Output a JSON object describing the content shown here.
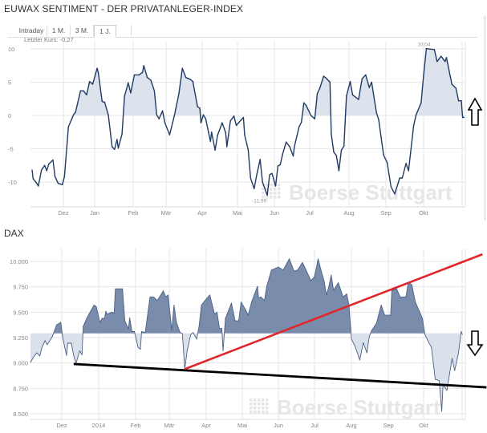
{
  "header": {
    "title": "EUWAX SENTIMENT - DER PRIVATANLEGER-INDEX"
  },
  "tabs": [
    {
      "label": "Intraday",
      "selected": false
    },
    {
      "label": "1 M.",
      "selected": false
    },
    {
      "label": "3 M.",
      "selected": false
    },
    {
      "label": "1 J.",
      "selected": true
    },
    {
      "label": "",
      "selected": false
    }
  ],
  "last_price": "Letzter Kurs: -0,27",
  "watermark": "Boerse Stuttgart",
  "colors": {
    "sentiment_line": "#1f3a63",
    "sentiment_fill": "#dde3ec",
    "dax_line": "#4a6088",
    "dax_fill_above": "#7a8cab",
    "dax_fill_below": "#dbe1ea",
    "trend_red": "#e0262b",
    "trend_black": "#000000"
  },
  "chart_data": [
    {
      "type": "area",
      "title": "EUWAX SENTIMENT - DER PRIVATANLEGER-INDEX",
      "x_tick_labels": [
        "Dez",
        "Jan",
        "Feb",
        "Mär",
        "Apr",
        "Mai",
        "Jun",
        "Jul",
        "Aug",
        "Sep",
        "Okt"
      ],
      "y_ticks": [
        10,
        5,
        0,
        -5,
        -10
      ],
      "y_tick_labels": [
        "10",
        "5",
        "0",
        "-5",
        "-10"
      ],
      "ylim": [
        -13,
        11
      ],
      "baseline": 0,
      "grid": true,
      "annotations": {
        "max_label": "10,04",
        "min_label": "-11,99",
        "arrow": "up"
      },
      "points": [
        [
          "2013-11-01",
          -8.2
        ],
        [
          "2013-11-02",
          -9.5
        ],
        [
          "2013-11-05",
          -10.1
        ],
        [
          "2013-11-07",
          -10.6
        ],
        [
          "2013-11-10",
          -8.2
        ],
        [
          "2013-11-13",
          -7.5
        ],
        [
          "2013-11-15",
          -8.3
        ],
        [
          "2013-11-17",
          -7.3
        ],
        [
          "2013-11-21",
          -6.7
        ],
        [
          "2013-11-23",
          -9.2
        ],
        [
          "2013-11-26",
          -10.2
        ],
        [
          "2013-11-30",
          -10.4
        ],
        [
          "2013-12-02",
          -9.2
        ],
        [
          "2013-12-06",
          -1.7
        ],
        [
          "2013-12-11",
          0.1
        ],
        [
          "2013-12-13",
          0.5
        ],
        [
          "2013-12-18",
          3.7
        ],
        [
          "2013-12-21",
          3.7
        ],
        [
          "2013-12-24",
          3.1
        ],
        [
          "2013-12-27",
          5.1
        ],
        [
          "2013-12-30",
          4.7
        ],
        [
          "2014-01-03",
          7.1
        ],
        [
          "2014-01-04",
          6.4
        ],
        [
          "2014-01-07",
          2.1
        ],
        [
          "2014-01-09",
          2.0
        ],
        [
          "2014-01-12",
          0.1
        ],
        [
          "2014-01-15",
          -4.7
        ],
        [
          "2014-01-17",
          -5.1
        ],
        [
          "2014-01-19",
          -3.6
        ],
        [
          "2014-01-20",
          -4.9
        ],
        [
          "2014-01-23",
          -2.8
        ],
        [
          "2014-01-25",
          2.9
        ],
        [
          "2014-01-28",
          4.9
        ],
        [
          "2014-01-30",
          3.4
        ],
        [
          "2014-02-02",
          6.1
        ],
        [
          "2014-02-06",
          6.1
        ],
        [
          "2014-02-09",
          6.5
        ],
        [
          "2014-02-10",
          7.5
        ],
        [
          "2014-02-13",
          5.7
        ],
        [
          "2014-02-16",
          5.3
        ],
        [
          "2014-02-19",
          3.7
        ],
        [
          "2014-02-21",
          0.1
        ],
        [
          "2014-02-23",
          -0.5
        ],
        [
          "2014-02-26",
          0.7
        ],
        [
          "2014-02-28",
          -1.1
        ],
        [
          "2014-03-04",
          -2.9
        ],
        [
          "2014-03-08",
          -0.1
        ],
        [
          "2014-03-12",
          3.3
        ],
        [
          "2014-03-15",
          7.1
        ],
        [
          "2014-03-18",
          5.7
        ],
        [
          "2014-03-22",
          5.4
        ],
        [
          "2014-03-24",
          5.1
        ],
        [
          "2014-03-28",
          1.3
        ],
        [
          "2014-03-30",
          1.1
        ],
        [
          "2014-03-31",
          -1.1
        ],
        [
          "2014-04-02",
          0.1
        ],
        [
          "2014-04-04",
          -0.5
        ],
        [
          "2014-04-08",
          -3.9
        ],
        [
          "2014-04-09",
          -2.5
        ],
        [
          "2014-04-12",
          -5.2
        ],
        [
          "2014-04-14",
          -3.0
        ],
        [
          "2014-04-18",
          -1.1
        ],
        [
          "2014-04-21",
          -2.6
        ],
        [
          "2014-04-22",
          -4.7
        ],
        [
          "2014-04-25",
          -0.8
        ],
        [
          "2014-04-28",
          -0.1
        ],
        [
          "2014-04-30",
          -1.5
        ],
        [
          "2014-05-06",
          -0.3
        ],
        [
          "2014-05-07",
          -2.9
        ],
        [
          "2014-05-10",
          -5.2
        ],
        [
          "2014-05-12",
          -9.4
        ],
        [
          "2014-05-15",
          -11.0
        ],
        [
          "2014-05-17",
          -9.1
        ],
        [
          "2014-05-20",
          -6.6
        ],
        [
          "2014-05-22",
          -10.0
        ],
        [
          "2014-05-26",
          -11.99
        ],
        [
          "2014-05-28",
          -8.9
        ],
        [
          "2014-05-30",
          -8.7
        ],
        [
          "2014-06-02",
          -10.6
        ],
        [
          "2014-06-04",
          -7.6
        ],
        [
          "2014-06-06",
          -7.4
        ],
        [
          "2014-06-08",
          -5.8
        ],
        [
          "2014-06-11",
          -4.0
        ],
        [
          "2014-06-14",
          -4.7
        ],
        [
          "2014-06-17",
          -6.1
        ],
        [
          "2014-06-18",
          -4.7
        ],
        [
          "2014-06-22",
          -1.7
        ],
        [
          "2014-06-24",
          -1.0
        ],
        [
          "2014-06-26",
          1.9
        ],
        [
          "2014-06-28",
          1.5
        ],
        [
          "2014-07-02",
          0.0
        ],
        [
          "2014-07-05",
          -0.5
        ],
        [
          "2014-07-07",
          3.3
        ],
        [
          "2014-07-09",
          4.1
        ],
        [
          "2014-07-12",
          5.9
        ],
        [
          "2014-07-14",
          5.6
        ],
        [
          "2014-07-17",
          5.0
        ],
        [
          "2014-07-18",
          -2.8
        ],
        [
          "2014-07-20",
          -5.5
        ],
        [
          "2014-07-22",
          -6.0
        ],
        [
          "2014-07-24",
          -8.3
        ],
        [
          "2014-07-26",
          -5.2
        ],
        [
          "2014-07-28",
          -4.6
        ],
        [
          "2014-07-30",
          2.9
        ],
        [
          "2014-08-02",
          5.1
        ],
        [
          "2014-08-04",
          3.1
        ],
        [
          "2014-08-09",
          2.4
        ],
        [
          "2014-08-12",
          5.5
        ],
        [
          "2014-08-15",
          6.1
        ],
        [
          "2014-08-18",
          4.2
        ],
        [
          "2014-08-20",
          5.0
        ],
        [
          "2014-08-24",
          0.5
        ],
        [
          "2014-08-26",
          -0.7
        ],
        [
          "2014-08-30",
          -5.9
        ],
        [
          "2014-09-02",
          -7.1
        ],
        [
          "2014-09-05",
          -10.7
        ],
        [
          "2014-09-08",
          -11.8
        ],
        [
          "2014-09-12",
          -9.4
        ],
        [
          "2014-09-14",
          -9.4
        ],
        [
          "2014-09-17",
          -7.2
        ],
        [
          "2014-09-19",
          -8.3
        ],
        [
          "2014-09-23",
          -1.6
        ],
        [
          "2014-09-25",
          0.1
        ],
        [
          "2014-09-29",
          1.9
        ],
        [
          "2014-10-01",
          6.1
        ],
        [
          "2014-10-03",
          10.04
        ],
        [
          "2014-10-09",
          9.9
        ],
        [
          "2014-10-11",
          8.1
        ],
        [
          "2014-10-14",
          8.9
        ],
        [
          "2014-10-17",
          8.1
        ],
        [
          "2014-10-18",
          8.7
        ],
        [
          "2014-10-22",
          4.7
        ],
        [
          "2014-10-25",
          4.1
        ],
        [
          "2014-10-27",
          2.2
        ],
        [
          "2014-10-29",
          2.2
        ],
        [
          "2014-10-30",
          -0.3
        ],
        [
          "2014-10-31",
          -0.27
        ]
      ]
    },
    {
      "type": "area",
      "title": "DAX",
      "x_tick_labels": [
        "Dez",
        "2014",
        "Feb",
        "Mär",
        "Apr",
        "Mai",
        "Jun",
        "Jul",
        "Aug",
        "Sep",
        "Okt"
      ],
      "y_ticks": [
        10000,
        9750,
        9500,
        9250,
        9000,
        8750,
        8500
      ],
      "y_tick_labels": [
        "10.000",
        "9.750",
        "9.500",
        "9.250",
        "9.000",
        "8.750",
        "8.500"
      ],
      "ylim": [
        8450,
        10150
      ],
      "baseline": 9290,
      "grid": true,
      "annotations": {
        "arrow": "down"
      },
      "trendlines": [
        {
          "color": "black",
          "from": [
            "2013-12-11",
            8990
          ],
          "to": [
            "2014-11-18",
            8760
          ]
        },
        {
          "color": "red",
          "from": [
            "2014-03-14",
            8940
          ],
          "to": [
            "2014-11-15",
            10070
          ]
        }
      ],
      "points": [
        [
          "2013-11-01",
          9005
        ],
        [
          "2013-11-04",
          9060
        ],
        [
          "2013-11-07",
          9100
        ],
        [
          "2013-11-10",
          9070
        ],
        [
          "2013-11-12",
          9155
        ],
        [
          "2013-11-15",
          9220
        ],
        [
          "2013-11-17",
          9180
        ],
        [
          "2013-11-22",
          9260
        ],
        [
          "2013-11-26",
          9375
        ],
        [
          "2013-11-30",
          9400
        ],
        [
          "2013-12-02",
          9235
        ],
        [
          "2013-12-05",
          9075
        ],
        [
          "2013-12-06",
          9195
        ],
        [
          "2013-12-09",
          9195
        ],
        [
          "2013-12-11",
          9075
        ],
        [
          "2013-12-13",
          8995
        ],
        [
          "2013-12-16",
          9120
        ],
        [
          "2013-12-18",
          9080
        ],
        [
          "2013-12-19",
          9360
        ],
        [
          "2013-12-22",
          9440
        ],
        [
          "2013-12-28",
          9570
        ],
        [
          "2013-12-30",
          9555
        ],
        [
          "2014-01-02",
          9400
        ],
        [
          "2014-01-04",
          9440
        ],
        [
          "2014-01-06",
          9440
        ],
        [
          "2014-01-07",
          9510
        ],
        [
          "2014-01-08",
          9480
        ],
        [
          "2014-01-12",
          9500
        ],
        [
          "2014-01-14",
          9490
        ],
        [
          "2014-01-15",
          9730
        ],
        [
          "2014-01-17",
          9730
        ],
        [
          "2014-01-21",
          9730
        ],
        [
          "2014-01-23",
          9415
        ],
        [
          "2014-01-26",
          9335
        ],
        [
          "2014-01-27",
          9445
        ],
        [
          "2014-01-29",
          9310
        ],
        [
          "2014-01-31",
          9310
        ],
        [
          "2014-02-03",
          9155
        ],
        [
          "2014-02-05",
          9135
        ],
        [
          "2014-02-06",
          9310
        ],
        [
          "2014-02-09",
          9300
        ],
        [
          "2014-02-13",
          9650
        ],
        [
          "2014-02-16",
          9650
        ],
        [
          "2014-02-19",
          9615
        ],
        [
          "2014-02-24",
          9710
        ],
        [
          "2014-02-26",
          9650
        ],
        [
          "2014-02-28",
          9670
        ],
        [
          "2014-03-03",
          9320
        ],
        [
          "2014-03-05",
          9570
        ],
        [
          "2014-03-07",
          9400
        ],
        [
          "2014-03-10",
          9300
        ],
        [
          "2014-03-12",
          9290
        ],
        [
          "2014-03-14",
          8940
        ],
        [
          "2014-03-16",
          9120
        ],
        [
          "2014-03-19",
          9280
        ],
        [
          "2014-03-21",
          9300
        ],
        [
          "2014-03-24",
          9235
        ],
        [
          "2014-03-26",
          9360
        ],
        [
          "2014-03-28",
          9570
        ],
        [
          "2014-03-31",
          9615
        ],
        [
          "2014-04-04",
          9670
        ],
        [
          "2014-04-05",
          9620
        ],
        [
          "2014-04-08",
          9480
        ],
        [
          "2014-04-10",
          9500
        ],
        [
          "2014-04-12",
          9340
        ],
        [
          "2014-04-14",
          9340
        ],
        [
          "2014-04-15",
          9120
        ],
        [
          "2014-04-17",
          9440
        ],
        [
          "2014-04-22",
          9590
        ],
        [
          "2014-04-25",
          9415
        ],
        [
          "2014-04-28",
          9415
        ],
        [
          "2014-04-30",
          9600
        ],
        [
          "2014-05-04",
          9520
        ],
        [
          "2014-05-06",
          9470
        ],
        [
          "2014-05-09",
          9600
        ],
        [
          "2014-05-14",
          9755
        ],
        [
          "2014-05-15",
          9640
        ],
        [
          "2014-05-17",
          9650
        ],
        [
          "2014-05-20",
          9615
        ],
        [
          "2014-05-22",
          9755
        ],
        [
          "2014-05-26",
          9915
        ],
        [
          "2014-06-01",
          9945
        ],
        [
          "2014-06-05",
          9915
        ],
        [
          "2014-06-10",
          10025
        ],
        [
          "2014-06-14",
          9905
        ],
        [
          "2014-06-17",
          9915
        ],
        [
          "2014-06-21",
          9990
        ],
        [
          "2014-06-24",
          9915
        ],
        [
          "2014-06-28",
          9810
        ],
        [
          "2014-07-01",
          9850
        ],
        [
          "2014-07-04",
          10025
        ],
        [
          "2014-07-07",
          9890
        ],
        [
          "2014-07-09",
          9810
        ],
        [
          "2014-07-11",
          9670
        ],
        [
          "2014-07-13",
          9750
        ],
        [
          "2014-07-15",
          9865
        ],
        [
          "2014-07-17",
          9715
        ],
        [
          "2014-07-21",
          9790
        ],
        [
          "2014-07-25",
          9650
        ],
        [
          "2014-07-28",
          9680
        ],
        [
          "2014-07-30",
          9570
        ],
        [
          "2014-08-01",
          9235
        ],
        [
          "2014-08-04",
          9165
        ],
        [
          "2014-08-08",
          9030
        ],
        [
          "2014-08-11",
          9200
        ],
        [
          "2014-08-14",
          9100
        ],
        [
          "2014-08-16",
          9260
        ],
        [
          "2014-08-18",
          9320
        ],
        [
          "2014-08-22",
          9390
        ],
        [
          "2014-08-26",
          9570
        ],
        [
          "2014-08-29",
          9470
        ],
        [
          "2014-09-03",
          9470
        ],
        [
          "2014-09-04",
          9715
        ],
        [
          "2014-09-08",
          9730
        ],
        [
          "2014-09-11",
          9650
        ],
        [
          "2014-09-16",
          9650
        ],
        [
          "2014-09-18",
          9795
        ],
        [
          "2014-09-21",
          9770
        ],
        [
          "2014-09-24",
          9600
        ],
        [
          "2014-09-30",
          9440
        ],
        [
          "2014-10-02",
          9280
        ],
        [
          "2014-10-05",
          9200
        ],
        [
          "2014-10-07",
          9155
        ],
        [
          "2014-10-10",
          8840
        ],
        [
          "2014-10-13",
          8825
        ],
        [
          "2014-10-15",
          8525
        ],
        [
          "2014-10-16",
          8785
        ],
        [
          "2014-10-19",
          8730
        ],
        [
          "2014-10-21",
          8890
        ],
        [
          "2014-10-23",
          9045
        ],
        [
          "2014-10-25",
          8925
        ],
        [
          "2014-10-28",
          9100
        ],
        [
          "2014-10-30",
          9310
        ],
        [
          "2014-10-31",
          9280
        ]
      ]
    }
  ]
}
